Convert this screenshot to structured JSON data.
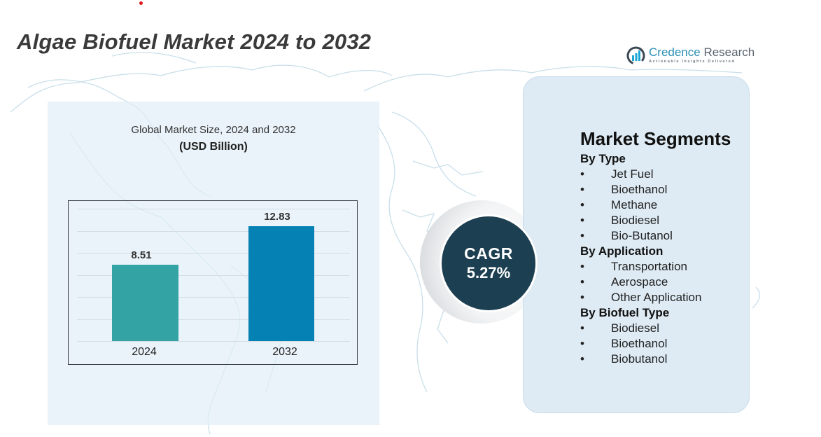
{
  "header": {
    "title": "Algae Biofuel Market 2024 to 2032"
  },
  "logo": {
    "name_part1": "Credence",
    "name_part2": " Research",
    "tagline": "Actionable Insights Delivered",
    "icon": "bar-chart-circle-icon"
  },
  "chart": {
    "title": "Global Market Size, 2024 and 2032",
    "unit": "(USD Billion)"
  },
  "chart_data": {
    "type": "bar",
    "title": "Global Market Size, 2024 and 2032",
    "subtitle": "(USD Billion)",
    "categories": [
      "2024",
      "2032"
    ],
    "values": [
      8.51,
      12.83
    ],
    "value_labels": [
      "8.51",
      "12.83"
    ],
    "colors": [
      "#33a3a3",
      "#0581b3"
    ],
    "xlabel": "",
    "ylabel": "USD Billion",
    "ylim": [
      0,
      15
    ],
    "grid": true,
    "legend": "none"
  },
  "cagr": {
    "label": "CAGR",
    "value": "5.27%",
    "color": "#1d3f52"
  },
  "segments": {
    "title": "Market Segments",
    "bullet": "•",
    "groups": [
      {
        "title": "By Type",
        "items": [
          "Jet Fuel",
          "Bioethanol",
          "Methane",
          "Biodiesel",
          "Bio-Butanol"
        ]
      },
      {
        "title": "By Application",
        "items": [
          "Transportation",
          "Aerospace",
          "Other Application"
        ]
      },
      {
        "title": "By Biofuel Type",
        "items": [
          "Biodiesel",
          "Bioethanol",
          "Biobutanol"
        ]
      }
    ]
  }
}
